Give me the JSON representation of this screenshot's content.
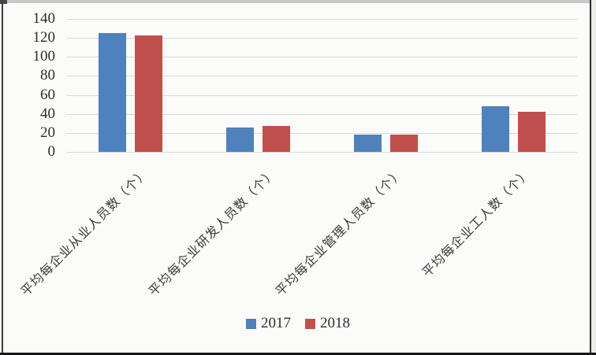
{
  "figure": {
    "background_color": "#fbfbfa",
    "gridline_color": "#d9d9d9",
    "text_color": "#2e2e2e"
  },
  "chart_data": {
    "type": "bar",
    "title": "",
    "xlabel": "",
    "ylabel": "",
    "categories": [
      "平均每企业从业人员数（个）",
      "平均每企业研发人员数（个）",
      "平均每企业管理人员数（个）",
      "平均每企业工人数（个）"
    ],
    "series": [
      {
        "name": "2017",
        "color": "#4F81BD",
        "values": [
          125,
          26,
          18,
          48
        ]
      },
      {
        "name": "2018",
        "color": "#C0504D",
        "values": [
          123,
          27,
          18,
          42
        ]
      }
    ],
    "ylim": [
      0,
      140
    ],
    "yticks": [
      0,
      20,
      40,
      60,
      80,
      100,
      120,
      140
    ],
    "grid": true,
    "grid_axis": "y",
    "legend_position": "bottom",
    "category_label_rotation_deg": 45
  }
}
